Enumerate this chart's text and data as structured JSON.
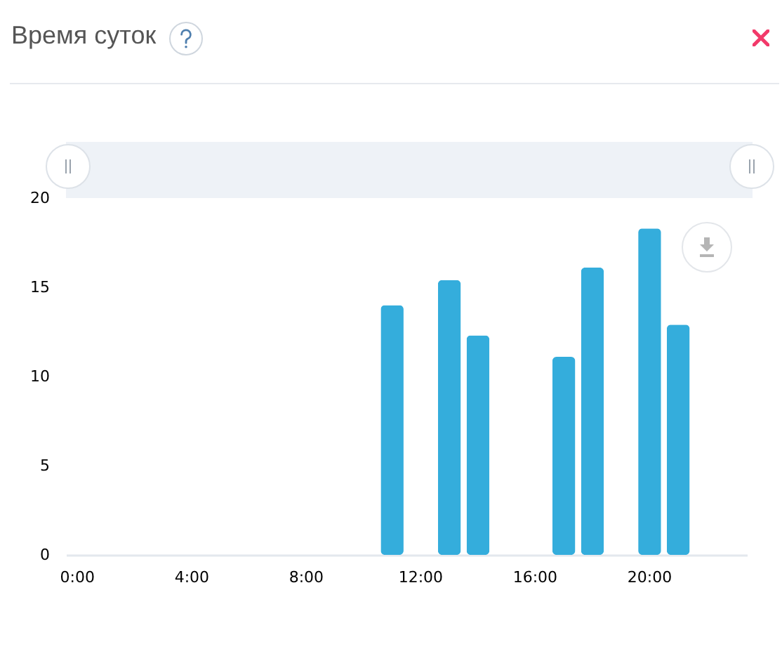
{
  "chart_data": {
    "type": "bar",
    "title": "Время суток",
    "categories": [
      "0:00",
      null,
      null,
      null,
      "4:00",
      null,
      null,
      null,
      "8:00",
      null,
      null,
      null,
      "12:00",
      null,
      null,
      null,
      "16:00",
      null,
      null,
      null,
      "20:00",
      null,
      null,
      null
    ],
    "values": [
      0,
      0,
      0,
      0,
      0,
      0,
      0,
      0,
      0,
      0,
      0,
      14,
      0,
      15.4,
      12.3,
      0,
      0,
      11.1,
      16.1,
      0,
      18.3,
      12.9,
      0,
      0
    ],
    "color": "#34addc",
    "ylim": [
      0,
      20
    ],
    "yticks": [
      0,
      5,
      10,
      15,
      20
    ],
    "grid": false
  }
}
